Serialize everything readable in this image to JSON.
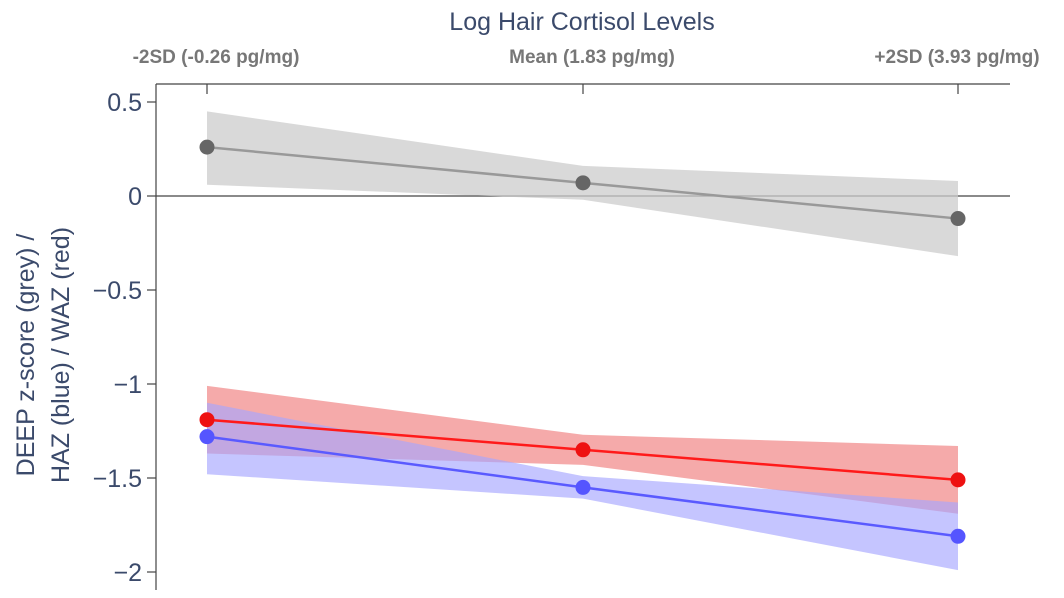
{
  "chart_data": {
    "type": "line",
    "title": "",
    "xlabel": "Log Hair Cortisol Levels",
    "ylabel_lines": [
      "DEEP z-score (grey) /",
      "HAZ (blue) / WAZ (red)"
    ],
    "categories": [
      "-2SD (-0.26 pg/mg)",
      "Mean (1.83 pg/mg)",
      "+2SD (3.93 pg/mg)"
    ],
    "x": [
      -0.26,
      1.83,
      3.93
    ],
    "ylim": [
      -2.15,
      0.52
    ],
    "yticks": [
      0.5,
      0,
      -0.5,
      -1,
      -1.5,
      -2
    ],
    "ytick_labels": [
      "0.5",
      "0",
      "−0.5",
      "−1",
      "−1.5",
      "−2"
    ],
    "grid": false,
    "zero_line": true,
    "series": [
      {
        "values": [
          0.26,
          0.07,
          -0.12
        ],
        "ci_lower": [
          0.06,
          -0.02,
          -0.32
        ],
        "ci_upper": [
          0.45,
          0.16,
          0.08
        ],
        "line_color": "#999999",
        "marker_color": "#666666",
        "band_color": "#cccccc"
      },
      {
        "values": [
          -1.19,
          -1.35,
          -1.51
        ],
        "ci_lower": [
          -1.37,
          -1.43,
          -1.69
        ],
        "ci_upper": [
          -1.01,
          -1.27,
          -1.33
        ],
        "line_color": "#ff1a1a",
        "marker_color": "#ee1111",
        "band_color": "#f07c7c"
      },
      {
        "values": [
          -1.28,
          -1.55,
          -1.81
        ],
        "ci_lower": [
          -1.48,
          -1.61,
          -1.99
        ],
        "ci_upper": [
          -1.1,
          -1.49,
          -1.63
        ],
        "line_color": "#5a5aff",
        "marker_color": "#5555ff",
        "band_color": "#a6a6ff"
      }
    ]
  }
}
